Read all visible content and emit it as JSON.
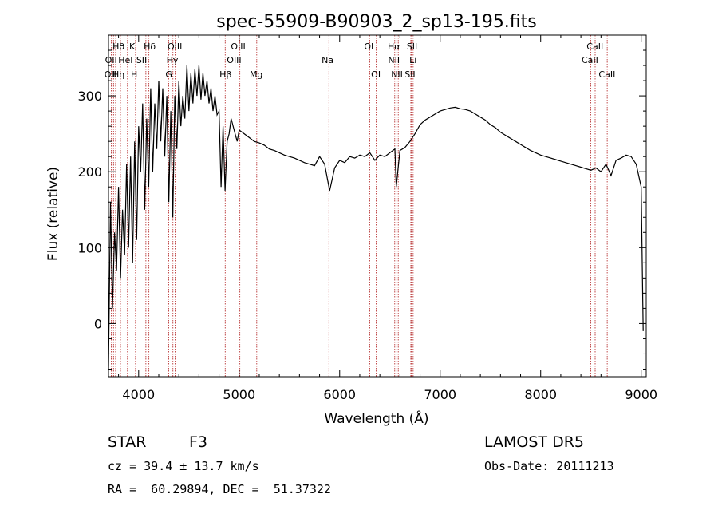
{
  "chart_data": {
    "type": "line",
    "title": "spec-55909-B90903_2_sp13-195.fits",
    "xlabel": "Wavelength (Å)",
    "ylabel": "Flux (relative)",
    "xlim": [
      3700,
      9050
    ],
    "ylim": [
      -70,
      380
    ],
    "x_ticks": [
      4000,
      5000,
      6000,
      7000,
      8000,
      9000
    ],
    "y_ticks": [
      0,
      100,
      200,
      300
    ],
    "grid": false,
    "line_color": "#000000",
    "marker_color": "#b22222",
    "series": [
      {
        "x": [
          3700,
          3720,
          3740,
          3760,
          3780,
          3800,
          3820,
          3840,
          3860,
          3880,
          3900,
          3920,
          3940,
          3960,
          3980,
          4000,
          4020,
          4040,
          4060,
          4080,
          4100,
          4120,
          4140,
          4160,
          4180,
          4200,
          4220,
          4240,
          4260,
          4280,
          4300,
          4320,
          4340,
          4360,
          4380,
          4400,
          4420,
          4440,
          4460,
          4480,
          4500,
          4520,
          4540,
          4560,
          4580,
          4600,
          4620,
          4640,
          4660,
          4680,
          4700,
          4720,
          4740,
          4760,
          4780,
          4800,
          4820,
          4840,
          4860,
          4880,
          4900,
          4920,
          4940,
          4960,
          4980,
          5000,
          5050,
          5100,
          5150,
          5200,
          5250,
          5300,
          5350,
          5400,
          5450,
          5500,
          5550,
          5600,
          5650,
          5700,
          5750,
          5800,
          5850,
          5900,
          5950,
          6000,
          6050,
          6100,
          6150,
          6200,
          6250,
          6300,
          6350,
          6400,
          6450,
          6500,
          6550,
          6563,
          6600,
          6650,
          6700,
          6750,
          6800,
          6850,
          6900,
          6950,
          7000,
          7050,
          7100,
          7150,
          7200,
          7250,
          7300,
          7350,
          7400,
          7450,
          7500,
          7550,
          7600,
          7650,
          7700,
          7750,
          7800,
          7850,
          7900,
          7950,
          8000,
          8050,
          8100,
          8150,
          8200,
          8250,
          8300,
          8350,
          8400,
          8450,
          8500,
          8550,
          8600,
          8650,
          8700,
          8750,
          8800,
          8850,
          8900,
          8950,
          9000,
          9020
        ],
        "y": [
          -60,
          160,
          20,
          120,
          70,
          180,
          60,
          150,
          90,
          210,
          100,
          220,
          80,
          240,
          110,
          260,
          200,
          290,
          150,
          270,
          180,
          310,
          200,
          290,
          230,
          320,
          240,
          310,
          220,
          300,
          160,
          280,
          140,
          300,
          230,
          320,
          260,
          300,
          270,
          340,
          280,
          330,
          290,
          335,
          300,
          340,
          295,
          330,
          300,
          320,
          290,
          310,
          280,
          300,
          275,
          280,
          180,
          260,
          175,
          240,
          250,
          270,
          260,
          250,
          240,
          255,
          250,
          245,
          240,
          238,
          235,
          230,
          228,
          225,
          222,
          220,
          218,
          215,
          212,
          210,
          208,
          220,
          210,
          175,
          205,
          215,
          212,
          220,
          218,
          222,
          220,
          225,
          215,
          222,
          220,
          225,
          230,
          180,
          228,
          232,
          240,
          250,
          262,
          268,
          272,
          276,
          280,
          282,
          284,
          285,
          283,
          282,
          280,
          276,
          272,
          268,
          262,
          258,
          252,
          248,
          244,
          240,
          236,
          232,
          228,
          225,
          222,
          220,
          218,
          216,
          214,
          212,
          210,
          208,
          206,
          204,
          202,
          205,
          200,
          210,
          195,
          215,
          218,
          222,
          220,
          210,
          180,
          -10
        ]
      }
    ],
    "lines": [
      {
        "x": 3727,
        "labels": [
          "OII"
        ]
      },
      {
        "x": 3750,
        "labels": [
          "Hθ",
          "OII"
        ]
      },
      {
        "x": 3771,
        "labels": [
          "Hη"
        ]
      },
      {
        "x": 3819,
        "labels": [
          "HeI"
        ]
      },
      {
        "x": 3889,
        "labels": [
          "Hη"
        ]
      },
      {
        "x": 3934,
        "labels": [
          "K"
        ]
      },
      {
        "x": 3969,
        "labels": [
          "H"
        ]
      },
      {
        "x": 4072,
        "labels": [
          "SII"
        ]
      },
      {
        "x": 4102,
        "labels": [
          "Hδ"
        ]
      },
      {
        "x": 4300,
        "labels": [
          "G"
        ]
      },
      {
        "x": 4341,
        "labels": [
          "Hγ"
        ]
      },
      {
        "x": 4363,
        "labels": [
          "OIII"
        ]
      },
      {
        "x": 4861,
        "labels": [
          "Hβ"
        ]
      },
      {
        "x": 4959,
        "labels": [
          "OIII"
        ]
      },
      {
        "x": 5007,
        "labels": [
          "OIII"
        ]
      },
      {
        "x": 5175,
        "labels": [
          "Mg"
        ]
      },
      {
        "x": 5893,
        "labels": [
          "Na"
        ]
      },
      {
        "x": 6300,
        "labels": [
          "OI"
        ]
      },
      {
        "x": 6364,
        "labels": [
          "OI"
        ]
      },
      {
        "x": 6548,
        "labels": [
          "NII"
        ]
      },
      {
        "x": 6563,
        "labels": [
          "Hα"
        ]
      },
      {
        "x": 6583,
        "labels": [
          "NII"
        ]
      },
      {
        "x": 6708,
        "labels": [
          "Li"
        ]
      },
      {
        "x": 6716,
        "labels": [
          "SII"
        ]
      },
      {
        "x": 6731,
        "labels": [
          "SII"
        ]
      },
      {
        "x": 8498,
        "labels": [
          "CaII"
        ]
      },
      {
        "x": 8542,
        "labels": [
          "CaII"
        ]
      },
      {
        "x": 8662,
        "labels": [
          "CaII"
        ]
      }
    ],
    "line_labels": [
      {
        "text": "Hθ",
        "x": 3800,
        "row": 1
      },
      {
        "text": "K",
        "x": 3935,
        "row": 1
      },
      {
        "text": "Hδ",
        "x": 4110,
        "row": 1
      },
      {
        "text": "OIII",
        "x": 4360,
        "row": 1
      },
      {
        "text": "OIII",
        "x": 4990,
        "row": 1
      },
      {
        "text": "OI",
        "x": 6290,
        "row": 1
      },
      {
        "text": "Hα",
        "x": 6540,
        "row": 1
      },
      {
        "text": "SII",
        "x": 6720,
        "row": 1
      },
      {
        "text": "CaII",
        "x": 8540,
        "row": 1
      },
      {
        "text": "OII",
        "x": 3725,
        "row": 2
      },
      {
        "text": "HeI",
        "x": 3870,
        "row": 2
      },
      {
        "text": "SII",
        "x": 4030,
        "row": 2
      },
      {
        "text": "Hγ",
        "x": 4335,
        "row": 2
      },
      {
        "text": "OIII",
        "x": 4950,
        "row": 2
      },
      {
        "text": "Na",
        "x": 5880,
        "row": 2
      },
      {
        "text": "NII",
        "x": 6540,
        "row": 2
      },
      {
        "text": "Li",
        "x": 6730,
        "row": 2
      },
      {
        "text": "CaII",
        "x": 8490,
        "row": 2
      },
      {
        "text": "OII",
        "x": 3718,
        "row": 3
      },
      {
        "text": "Hη",
        "x": 3800,
        "row": 3
      },
      {
        "text": "H",
        "x": 3955,
        "row": 3
      },
      {
        "text": "G",
        "x": 4300,
        "row": 3
      },
      {
        "text": "Hβ",
        "x": 4865,
        "row": 3
      },
      {
        "text": "Mg",
        "x": 5170,
        "row": 3
      },
      {
        "text": "OI",
        "x": 6360,
        "row": 3
      },
      {
        "text": "NII",
        "x": 6570,
        "row": 3
      },
      {
        "text": "SII",
        "x": 6700,
        "row": 3
      },
      {
        "text": "CaII",
        "x": 8660,
        "row": 3
      }
    ]
  },
  "info": {
    "object_class": "STAR",
    "subclass": "F3",
    "survey": "LAMOST DR5",
    "cz_line": "cz = 39.4 ± 13.7 km/s",
    "obs_date": "Obs-Date: 20111213",
    "coords": "RA =  60.29894, DEC =  51.37322"
  }
}
